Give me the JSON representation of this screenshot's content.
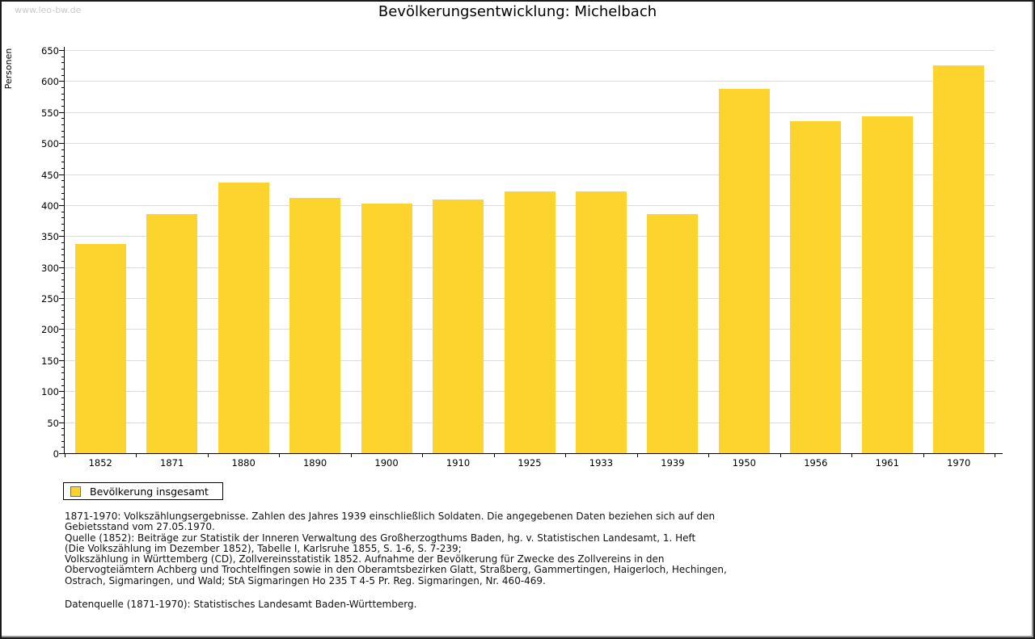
{
  "watermark": "www.leo-bw.de",
  "title": "Bevölkerungsentwicklung: Michelbach",
  "chart_data": {
    "type": "bar",
    "title": "Bevölkerungsentwicklung: Michelbach",
    "xlabel": "",
    "ylabel": "Personen",
    "ylim": [
      0,
      650
    ],
    "ytick_step": 50,
    "yminor_step": 10,
    "grid": true,
    "legend_position": "bottom-left",
    "categories": [
      "1852",
      "1871",
      "1880",
      "1890",
      "1900",
      "1910",
      "1925",
      "1933",
      "1939",
      "1950",
      "1956",
      "1961",
      "1970"
    ],
    "series": [
      {
        "name": "Bevölkerung insgesamt",
        "values": [
          338,
          385,
          436,
          411,
          403,
          409,
          422,
          422,
          386,
          587,
          536,
          543,
          625
        ]
      }
    ]
  },
  "legend": {
    "items": [
      {
        "label": "Bevölkerung insgesamt",
        "color": "#fdd42e"
      }
    ]
  },
  "footnotes": {
    "lines": [
      "1871-1970: Volkszählungsergebnisse. Zahlen des Jahres 1939 einschließlich Soldaten. Die angegebenen Daten beziehen sich auf den",
      "Gebietsstand vom 27.05.1970.",
      "Quelle (1852): Beiträge zur Statistik der Inneren Verwaltung des Großherzogthums Baden, hg. v. Statistischen Landesamt, 1. Heft",
      "(Die Volkszählung im Dezember 1852), Tabelle I, Karlsruhe 1855, S. 1-6, S. 7-239;",
      "Volkszählung in Württemberg (CD), Zollvereinsstatistik 1852. Aufnahme der Bevölkerung für Zwecke des Zollvereins in den",
      "Obervogteiämtern Achberg und Trochtelfingen sowie in den Oberamtsbezirken Glatt, Straßberg, Gammertingen, Haigerloch, Hechingen,",
      "Ostrach, Sigmaringen, und Wald; StA Sigmaringen Ho 235 T 4-5 Pr. Reg. Sigmaringen, Nr. 460-469."
    ],
    "datasource": "Datenquelle (1871-1970): Statistisches Landesamt Baden-Württemberg."
  },
  "colors": {
    "bar_fill": "#fdd42e",
    "swatch_border": "#6f6f6f",
    "gridline": "#dcdcdc",
    "axis": "#000000",
    "watermark": "#c9c9c9",
    "text": "#111111"
  }
}
